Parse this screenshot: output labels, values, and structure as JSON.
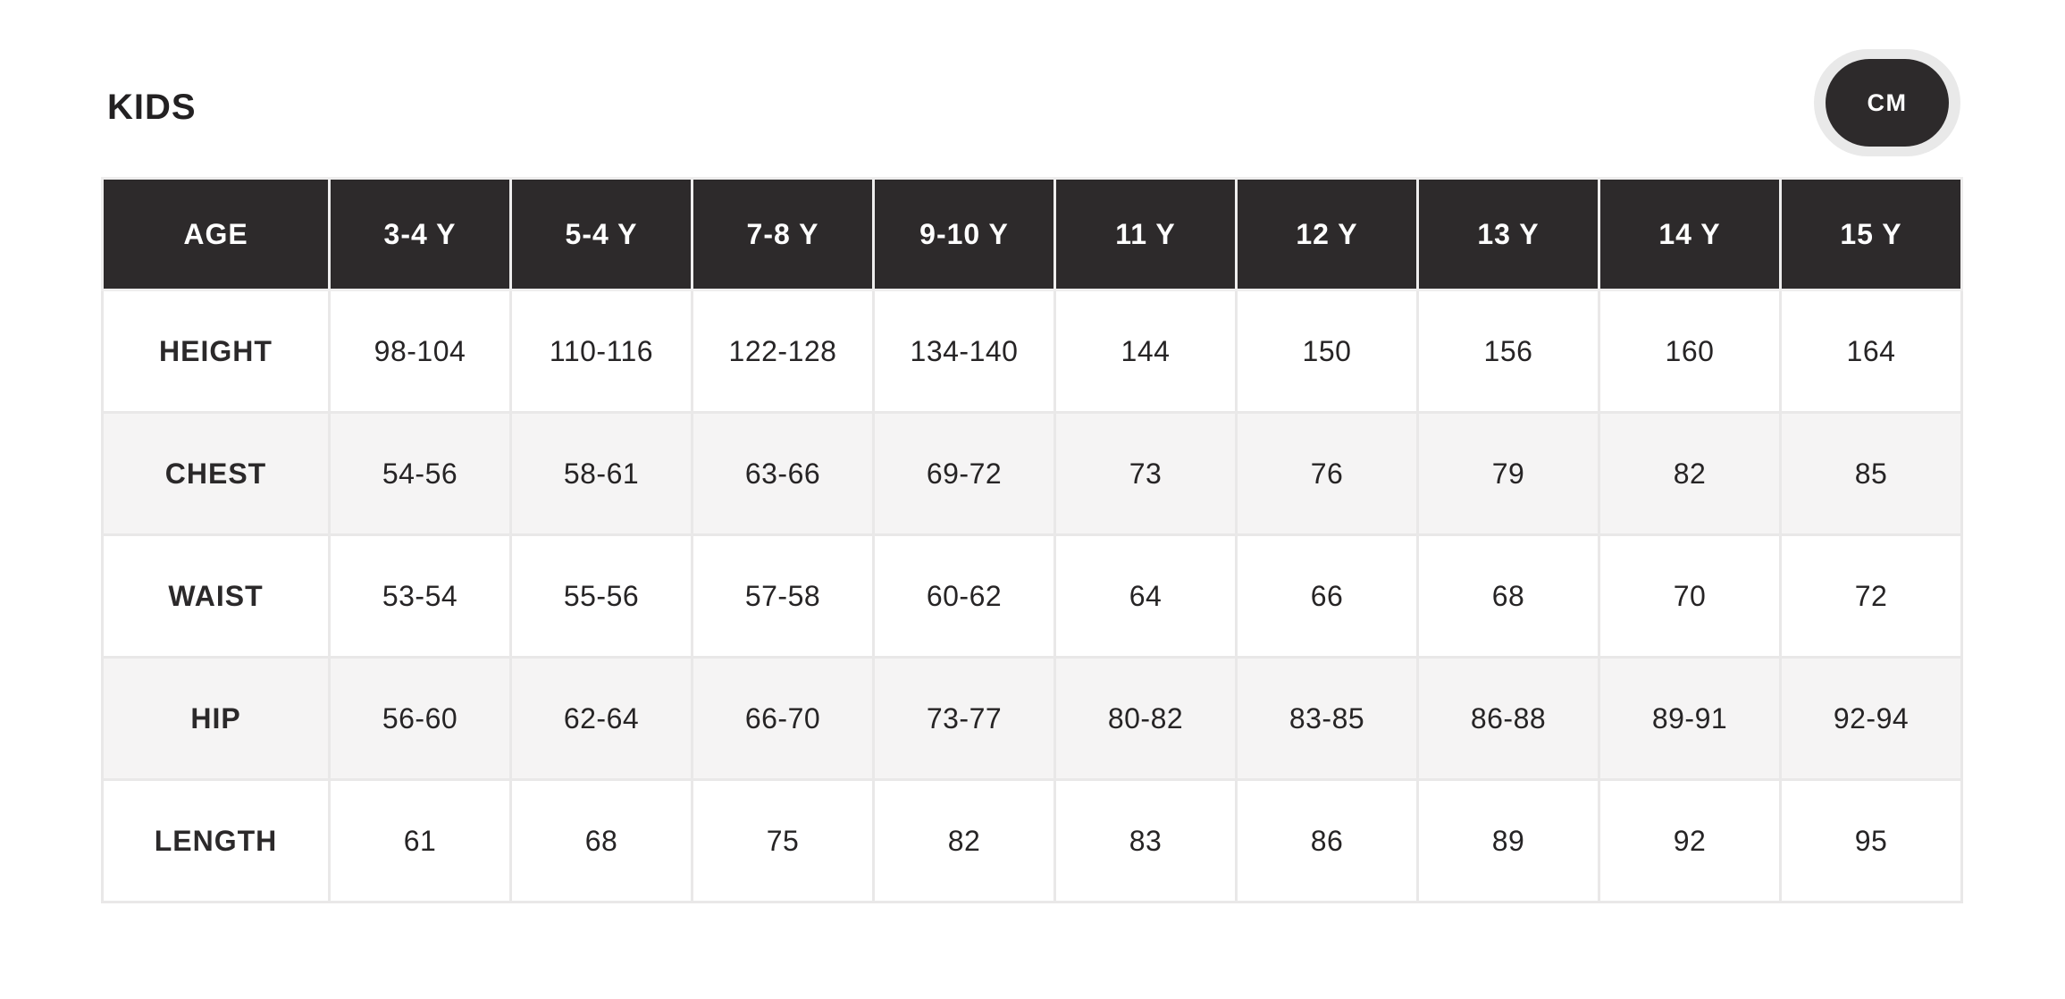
{
  "page": {
    "title": "KIDS",
    "unit_button_label": "CM"
  },
  "size_table": {
    "columns": [
      "AGE",
      "3-4 Y",
      "5-4 Y",
      "7-8 Y",
      "9-10 Y",
      "11 Y",
      "12 Y",
      "13 Y",
      "14 Y",
      "15 Y"
    ],
    "rows": [
      {
        "label": "HEIGHT",
        "values": [
          "98-104",
          "110-116",
          "122-128",
          "134-140",
          "144",
          "150",
          "156",
          "160",
          "164"
        ]
      },
      {
        "label": "CHEST",
        "values": [
          "54-56",
          "58-61",
          "63-66",
          "69-72",
          "73",
          "76",
          "79",
          "82",
          "85"
        ]
      },
      {
        "label": "WAIST",
        "values": [
          "53-54",
          "55-56",
          "57-58",
          "60-62",
          "64",
          "66",
          "68",
          "70",
          "72"
        ]
      },
      {
        "label": "HIP",
        "values": [
          "56-60",
          "62-64",
          "66-70",
          "73-77",
          "80-82",
          "83-85",
          "86-88",
          "89-91",
          "92-94"
        ]
      },
      {
        "label": "LENGTH",
        "values": [
          "61",
          "68",
          "75",
          "82",
          "83",
          "86",
          "89",
          "92",
          "95"
        ]
      }
    ]
  },
  "colors": {
    "header_bg": "#2d2a2b",
    "header_text": "#ffffff",
    "row_bg": "#ffffff",
    "row_alt_bg": "#f5f4f4",
    "grid_border": "#e9e8e8",
    "body_text": "#262425",
    "unit_button_bg": "#2d2a2b",
    "unit_button_ring": "#e9e9e9",
    "unit_button_text": "#ffffff"
  }
}
